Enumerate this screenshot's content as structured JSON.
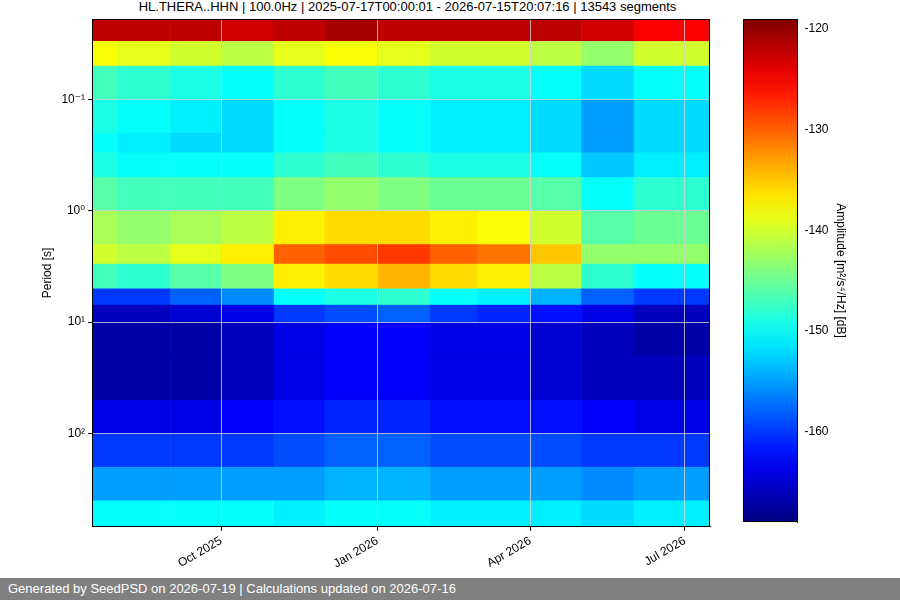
{
  "chart_data": {
    "type": "heatmap",
    "title": "HL.THERA..HHN | 100.0Hz | 2025-07-17T00:00:01 - 2026-07-15T20:07:16 | 13543 segments",
    "footer": "Generated by SeedPSD on 2026-07-19 | Calculations updated on 2026-07-16",
    "y_label": "Period [s]",
    "log": "y",
    "grid": true,
    "x": [
      "2025-07",
      "2025-08",
      "2025-09",
      "2025-10",
      "2025-11",
      "2025-12",
      "2026-01",
      "2026-02",
      "2026-03",
      "2026-04",
      "2026-05",
      "2026-06",
      "2026-07"
    ],
    "xlim": [
      "2025-07-17T00:00:01",
      "2026-07-15T20:07:16"
    ],
    "xticks": [
      {
        "value": "2025-10",
        "label": "Oct 2025"
      },
      {
        "value": "2026-01",
        "label": "Jan 2026"
      },
      {
        "value": "2026-04",
        "label": "Apr 2026"
      },
      {
        "value": "2026-07",
        "label": "Jul 2026"
      }
    ],
    "ylim": [
      0.019,
      690
    ],
    "yticks": [
      {
        "value": 0.1,
        "label": "10⁻¹"
      },
      {
        "value": 1,
        "label": "10⁰"
      },
      {
        "value": 10,
        "label": "10¹"
      },
      {
        "value": 100,
        "label": "10²"
      }
    ],
    "period_edges": [
      0.019,
      0.03,
      0.05,
      0.1,
      0.2,
      0.3,
      0.5,
      1,
      2,
      3,
      5,
      7,
      10,
      20,
      50,
      100,
      200,
      400,
      690
    ],
    "values": [
      [
        -122,
        -122,
        -122,
        -123,
        -122,
        -121,
        -122,
        -122,
        -122,
        -122,
        -123,
        -125,
        -125
      ],
      [
        -138,
        -139,
        -140,
        -141,
        -139,
        -138,
        -139,
        -140,
        -140,
        -141,
        -143,
        -140,
        -140
      ],
      [
        -147,
        -148,
        -149,
        -150,
        -148,
        -147,
        -148,
        -149,
        -149,
        -150,
        -152,
        -150,
        -150
      ],
      [
        -149,
        -150,
        -151,
        -152,
        -150,
        -149,
        -150,
        -151,
        -151,
        -152,
        -155,
        -152,
        -152
      ],
      [
        -150,
        -151,
        -152,
        -152,
        -150,
        -149,
        -150,
        -151,
        -151,
        -152,
        -155,
        -152,
        -152
      ],
      [
        -149,
        -150,
        -150,
        -150,
        -148,
        -147,
        -148,
        -149,
        -149,
        -150,
        -153,
        -151,
        -151
      ],
      [
        -146,
        -147,
        -147,
        -147,
        -144,
        -143,
        -144,
        -145,
        -145,
        -146,
        -150,
        -148,
        -148
      ],
      [
        -142,
        -143,
        -142,
        -141,
        -137,
        -136,
        -136,
        -137,
        -138,
        -140,
        -146,
        -145,
        -145
      ],
      [
        -140,
        -141,
        -139,
        -137,
        -130,
        -129,
        -128,
        -130,
        -131,
        -135,
        -143,
        -143,
        -143
      ],
      [
        -147,
        -148,
        -146,
        -144,
        -137,
        -136,
        -134,
        -136,
        -137,
        -141,
        -148,
        -150,
        -150
      ],
      [
        -160,
        -160,
        -158,
        -156,
        -150,
        -149,
        -148,
        -150,
        -151,
        -154,
        -158,
        -160,
        -160
      ],
      [
        -166,
        -166,
        -165,
        -164,
        -160,
        -159,
        -158,
        -160,
        -161,
        -162,
        -164,
        -166,
        -166
      ],
      [
        -167,
        -167,
        -167,
        -166,
        -164,
        -163,
        -163,
        -164,
        -164,
        -165,
        -166,
        -167,
        -167
      ],
      [
        -167,
        -167,
        -167,
        -166,
        -164,
        -163,
        -163,
        -164,
        -164,
        -165,
        -166,
        -166,
        -166
      ],
      [
        -164,
        -164,
        -164,
        -163,
        -162,
        -161,
        -161,
        -162,
        -162,
        -162,
        -163,
        -164,
        -164
      ],
      [
        -160,
        -160,
        -160,
        -160,
        -159,
        -158,
        -158,
        -159,
        -159,
        -159,
        -160,
        -160,
        -160
      ],
      [
        -155,
        -155,
        -155,
        -155,
        -155,
        -154,
        -154,
        -155,
        -155,
        -155,
        -156,
        -155,
        -155
      ],
      [
        -150,
        -150,
        -150,
        -150,
        -151,
        -150,
        -150,
        -151,
        -151,
        -151,
        -152,
        -151,
        -151
      ]
    ],
    "colorbar": {
      "label": "Amplitude [m²/s⁴/Hz] [dB]",
      "range": [
        -169,
        -119
      ],
      "ticks": [
        -160,
        -150,
        -140,
        -130,
        -120
      ]
    }
  }
}
